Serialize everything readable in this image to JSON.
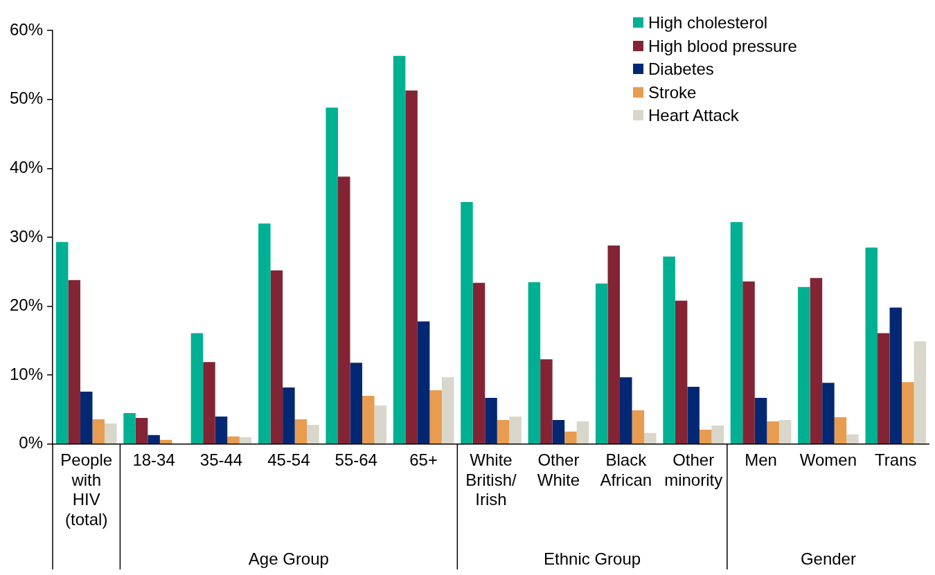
{
  "chart_data": {
    "type": "bar",
    "categories": [
      "People with HIV (total)",
      "18-34",
      "35-44",
      "45-54",
      "55-64",
      "65+",
      "White British/ Irish",
      "Other White",
      "Black African",
      "Other minority",
      "Men",
      "Women",
      "Trans"
    ],
    "series": [
      {
        "name": "High cholesterol",
        "color": "#00b092",
        "values": [
          29.3,
          4.5,
          16.1,
          32.0,
          48.8,
          56.3,
          35.1,
          23.5,
          23.3,
          27.2,
          32.2,
          22.8,
          28.5
        ]
      },
      {
        "name": "High blood pressure",
        "color": "#832434",
        "values": [
          23.8,
          3.8,
          11.9,
          25.2,
          38.8,
          51.3,
          23.4,
          12.3,
          28.8,
          20.8,
          23.6,
          24.1,
          16.1
        ]
      },
      {
        "name": "Diabetes",
        "color": "#022873",
        "values": [
          7.6,
          1.3,
          4.0,
          8.2,
          11.8,
          17.8,
          6.7,
          3.5,
          9.7,
          8.3,
          6.7,
          8.9,
          19.8
        ]
      },
      {
        "name": "Stroke",
        "color": "#e89c4f",
        "values": [
          3.6,
          0.6,
          1.1,
          3.6,
          7.0,
          7.8,
          3.5,
          1.8,
          4.9,
          2.1,
          3.3,
          3.9,
          9.0
        ]
      },
      {
        "name": "Heart Attack",
        "color": "#d9d7cb",
        "values": [
          3.0,
          0,
          1.0,
          2.8,
          5.6,
          9.7,
          4.0,
          3.3,
          1.6,
          2.7,
          3.5,
          1.4,
          14.9
        ]
      }
    ],
    "annotations": [
      "Age Group",
      "Ethnic Group",
      "Gender"
    ],
    "ylim": [
      0,
      60
    ],
    "yticks": [
      {
        "value": 0,
        "label": "0%"
      },
      {
        "value": 10,
        "label": "10%"
      },
      {
        "value": 20,
        "label": "20%"
      },
      {
        "value": 30,
        "label": "30%"
      },
      {
        "value": 40,
        "label": "40%"
      },
      {
        "value": 50,
        "label": "50%"
      },
      {
        "value": 60,
        "label": "60%"
      }
    ],
    "grid": false,
    "legend": "top right"
  }
}
